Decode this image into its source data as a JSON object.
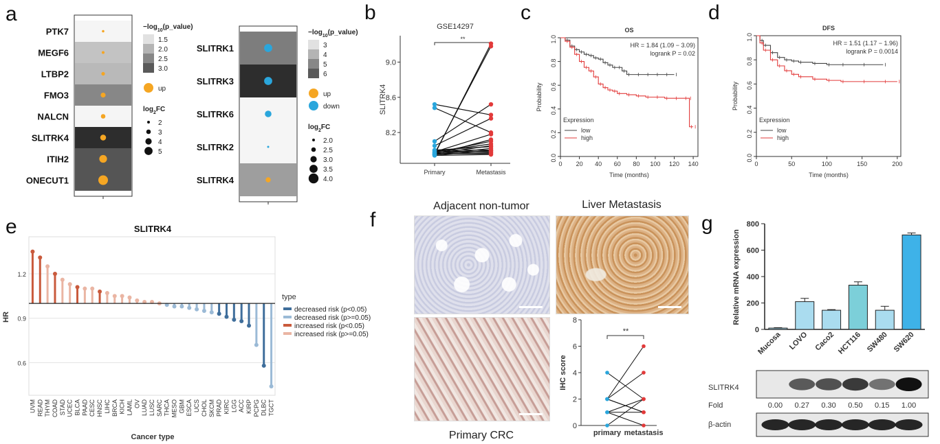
{
  "panel_labels": [
    "a",
    "b",
    "c",
    "d",
    "e",
    "f",
    "g"
  ],
  "colors": {
    "up": "#f5a623",
    "down": "#2aa6dc",
    "grey_dark": "#333333",
    "red": "#e23a3a",
    "black": "#333333",
    "dec_sig": "#3f6e9b",
    "dec_ns": "#9bbad6",
    "inc_sig": "#c95a3c",
    "inc_ns": "#eab5a3"
  },
  "chart_data": [
    {
      "panel": "a-left",
      "type": "heatmap",
      "genes": [
        "PTK7",
        "MEGF6",
        "LTBP2",
        "FMO3",
        "NALCN",
        "SLITRK4",
        "ITIH2",
        "ONECUT1"
      ],
      "neglog10p": [
        1.0,
        1.5,
        1.6,
        2.1,
        1.0,
        3.0,
        2.6,
        2.6
      ],
      "log2fc": [
        1.2,
        1.4,
        1.8,
        2.5,
        2.3,
        3.0,
        4.0,
        5.0
      ],
      "direction": [
        "up",
        "up",
        "up",
        "up",
        "up",
        "up",
        "up",
        "up"
      ],
      "legend_title_p": "−log",
      "legend_title_p_sub": "10",
      "legend_title_p_tail": "(p_value)",
      "p_ticks": [
        "1.5",
        "2.0",
        "2.5",
        "3.0"
      ],
      "dir_labels": [
        "up"
      ],
      "fc_title": "log",
      "fc_title_sub": "2",
      "fc_title_tail": "FC",
      "fc_ticks": [
        "2",
        "3",
        "4",
        "5"
      ]
    },
    {
      "panel": "a-right",
      "type": "heatmap",
      "genes": [
        "SLITRK1",
        "SLITRK3",
        "SLITRK6",
        "SLITRK2",
        "SLITRK4"
      ],
      "neglog10p": [
        4.8,
        6.0,
        3.0,
        3.0,
        4.3
      ],
      "log2fc": [
        3.5,
        3.5,
        3.0,
        1.5,
        2.5
      ],
      "direction": [
        "down",
        "down",
        "down",
        "down",
        "up"
      ],
      "legend_title_p": "−log",
      "legend_title_p_sub": "10",
      "legend_title_p_tail": "(p_value)",
      "p_ticks": [
        "3",
        "4",
        "5",
        "6"
      ],
      "dir_labels": [
        "up",
        "down"
      ],
      "fc_title": "log",
      "fc_title_sub": "2",
      "fc_title_tail": "FC",
      "fc_ticks": [
        "2.0",
        "2.5",
        "3.0",
        "3.5",
        "4.0"
      ]
    },
    {
      "panel": "b",
      "type": "scatter",
      "title": "GSE14297",
      "ylabel": "SLITRK4",
      "significance": "**",
      "categories": [
        "Primary",
        "Metastasis"
      ],
      "ylim": [
        7.85,
        9.3
      ],
      "yticks": [
        "8.2",
        "8.6",
        "9.0"
      ],
      "pairs": [
        [
          7.95,
          9.21
        ],
        [
          7.96,
          9.18
        ],
        [
          8.52,
          8.4
        ],
        [
          8.48,
          8.2
        ],
        [
          8.1,
          8.52
        ],
        [
          8.05,
          8.36
        ],
        [
          7.98,
          8.18
        ],
        [
          7.95,
          8.12
        ],
        [
          7.97,
          8.1
        ],
        [
          7.96,
          8.05
        ],
        [
          8.0,
          8.0
        ],
        [
          7.99,
          7.98
        ],
        [
          7.96,
          7.96
        ],
        [
          7.94,
          7.95
        ],
        [
          7.95,
          8.02
        ],
        [
          7.98,
          8.07
        ],
        [
          7.97,
          7.99
        ],
        [
          8.0,
          8.04
        ],
        [
          7.96,
          7.97
        ],
        [
          7.94,
          8.0
        ]
      ]
    },
    {
      "panel": "c",
      "type": "line",
      "title": "OS",
      "xlabel": "Time (months)",
      "ylabel": "Probability",
      "hr_text": "HR = 1.84 (1.09 − 3.09)",
      "logrank_text": "logrank P = 0.02",
      "legend_title": "Expression",
      "xlim": [
        0,
        145
      ],
      "ylim": [
        0,
        1
      ],
      "xticks": [
        "0",
        "20",
        "40",
        "60",
        "80",
        "100",
        "120",
        "140"
      ],
      "yticks": [
        "0.0",
        "0.2",
        "0.4",
        "0.6",
        "0.8",
        "1.0"
      ],
      "series": [
        {
          "name": "low",
          "x": [
            0,
            5,
            10,
            15,
            20,
            25,
            30,
            35,
            40,
            45,
            50,
            55,
            60,
            65,
            70,
            80,
            90,
            100,
            110,
            120
          ],
          "y": [
            1,
            0.98,
            0.93,
            0.9,
            0.88,
            0.86,
            0.85,
            0.83,
            0.82,
            0.79,
            0.77,
            0.75,
            0.75,
            0.72,
            0.69,
            0.69,
            0.69,
            0.69,
            0.69,
            0.69
          ]
        },
        {
          "name": "high",
          "x": [
            0,
            5,
            10,
            15,
            20,
            25,
            30,
            35,
            40,
            45,
            50,
            55,
            60,
            70,
            80,
            90,
            100,
            110,
            120,
            130,
            135,
            136,
            140
          ],
          "y": [
            1,
            0.97,
            0.92,
            0.86,
            0.8,
            0.75,
            0.72,
            0.67,
            0.61,
            0.58,
            0.56,
            0.55,
            0.53,
            0.52,
            0.51,
            0.5,
            0.5,
            0.49,
            0.49,
            0.49,
            0.49,
            0.25,
            0.25
          ]
        }
      ]
    },
    {
      "panel": "d",
      "type": "line",
      "title": "DFS",
      "xlabel": "Time (months)",
      "ylabel": "Probability",
      "hr_text": "HR = 1.51 (1.17 − 1.96)",
      "logrank_text": "logrank P = 0.0014",
      "legend_title": "Expression",
      "xlim": [
        0,
        205
      ],
      "ylim": [
        0,
        1
      ],
      "xticks": [
        "0",
        "50",
        "100",
        "150",
        "200"
      ],
      "yticks": [
        "0.0",
        "0.2",
        "0.4",
        "0.6",
        "0.8",
        "1.0"
      ],
      "series": [
        {
          "name": "low",
          "x": [
            0,
            5,
            10,
            20,
            30,
            40,
            50,
            60,
            80,
            100,
            120,
            150,
            180
          ],
          "y": [
            1,
            0.96,
            0.92,
            0.86,
            0.82,
            0.8,
            0.79,
            0.78,
            0.77,
            0.76,
            0.76,
            0.76,
            0.76
          ]
        },
        {
          "name": "high",
          "x": [
            0,
            5,
            10,
            20,
            30,
            40,
            50,
            60,
            80,
            100,
            120,
            150,
            180,
            200
          ],
          "y": [
            1,
            0.94,
            0.88,
            0.8,
            0.75,
            0.71,
            0.68,
            0.66,
            0.64,
            0.63,
            0.62,
            0.62,
            0.62,
            0.62
          ]
        }
      ]
    },
    {
      "panel": "e",
      "type": "bar",
      "title": "SLITRK4",
      "xlabel": "Cancer type",
      "ylabel": "HR",
      "yticks": [
        "0.6",
        "0.9",
        "1.2"
      ],
      "ylim": [
        0.38,
        1.45
      ],
      "baseline": 1.0,
      "legend_title": "type",
      "legend_entries": [
        "decreased risk (p<0.05)",
        "decreased risk (p>=0.05)",
        "increased risk (p<0.05)",
        "increased risk (p>=0.05)"
      ],
      "categories": [
        "UVM",
        "READ",
        "THYM",
        "COAD",
        "STAD",
        "UCEC",
        "BLCA",
        "PAAD",
        "CESC",
        "HNSC",
        "LIHC",
        "BRCA",
        "KICH",
        "LAML",
        "OV",
        "LUAD",
        "LUSC",
        "SARC",
        "THCA",
        "MESO",
        "GBM",
        "ESCA",
        "UCS",
        "CHOL",
        "SKCM",
        "PRAD",
        "KIRC",
        "LGG",
        "ACC",
        "KIRP",
        "PCPG",
        "DLBC",
        "TGCT"
      ],
      "values": [
        1.35,
        1.31,
        1.25,
        1.2,
        1.16,
        1.13,
        1.11,
        1.1,
        1.1,
        1.08,
        1.07,
        1.05,
        1.05,
        1.04,
        1.02,
        1.01,
        1.01,
        1.0,
        0.99,
        0.98,
        0.98,
        0.97,
        0.96,
        0.95,
        0.94,
        0.93,
        0.91,
        0.89,
        0.88,
        0.85,
        0.72,
        0.58,
        0.44
      ],
      "risk": [
        2,
        2,
        3,
        2,
        3,
        3,
        2,
        3,
        3,
        2,
        3,
        3,
        3,
        3,
        3,
        3,
        3,
        3,
        1,
        1,
        1,
        1,
        1,
        1,
        1,
        0,
        0,
        0,
        0,
        0,
        1,
        0,
        1
      ]
    },
    {
      "panel": "f",
      "type": "scatter",
      "captions": {
        "adjacent": "Adjacent non-tumor",
        "liver": "Liver Metastasis",
        "primary": "Primary CRC"
      },
      "ylabel": "IHC score",
      "significance": "**",
      "categories": [
        "primary",
        "metastasis"
      ],
      "ylim": [
        0,
        8
      ],
      "yticks": [
        "0",
        "2",
        "4",
        "6",
        "8"
      ],
      "pairs": [
        [
          4,
          2
        ],
        [
          2,
          6
        ],
        [
          2,
          4
        ],
        [
          2,
          1
        ],
        [
          1,
          2
        ],
        [
          1,
          1
        ],
        [
          0,
          2
        ],
        [
          1,
          0
        ],
        [
          2,
          1
        ]
      ]
    },
    {
      "panel": "g",
      "type": "bar",
      "ylabel": "Relative mRNA expression",
      "yticks": [
        "0",
        "200",
        "400",
        "600",
        "800"
      ],
      "ylim": [
        0,
        800
      ],
      "categories": [
        "Mucosa",
        "LOVO",
        "Caco2",
        "HCT116",
        "SW480",
        "SW620"
      ],
      "values": [
        10,
        210,
        145,
        335,
        145,
        715
      ],
      "errors": [
        3,
        25,
        5,
        25,
        30,
        15
      ],
      "bar_colors": [
        "#aadcef",
        "#aadcef",
        "#aadcef",
        "#7ccfd9",
        "#aadcef",
        "#3eb2e8"
      ],
      "blot_labels": {
        "target": "SLITRK4",
        "fold": "Fold",
        "loading": "β-actin"
      },
      "fold_values": [
        "0.00",
        "0.27",
        "0.30",
        "0.50",
        "0.15",
        "1.00"
      ],
      "band_intensity": [
        0.0,
        0.55,
        0.6,
        0.75,
        0.4,
        1.0
      ]
    }
  ]
}
